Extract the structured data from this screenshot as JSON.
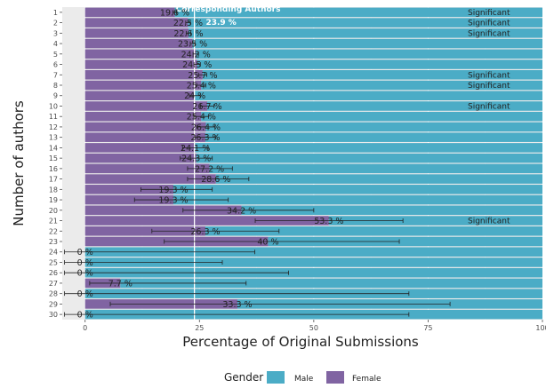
{
  "chart_data": {
    "type": "bar",
    "orientation": "horizontal",
    "stacked": true,
    "xlabel": "Percentage of Original Submissions",
    "ylabel": "Number of authors",
    "xlim": [
      -5,
      100
    ],
    "x_ticks": [
      0,
      25,
      50,
      75,
      100
    ],
    "grid": true,
    "categories": [
      "1",
      "2",
      "3",
      "4",
      "5",
      "6",
      "7",
      "8",
      "9",
      "10",
      "11",
      "12",
      "13",
      "14",
      "15",
      "16",
      "17",
      "18",
      "19",
      "20",
      "21",
      "22",
      "23",
      "24",
      "25",
      "26",
      "27",
      "28",
      "29",
      "30"
    ],
    "series": [
      {
        "name": "Female",
        "color": "#8064a2",
        "values": [
          19.6,
          22.5,
          22.6,
          23.5,
          24.2,
          24.5,
          25.7,
          25.4,
          24,
          26.7,
          25.4,
          26.4,
          26.3,
          24.1,
          24.3,
          27.2,
          28.6,
          19.3,
          19.3,
          34.2,
          53.3,
          26.3,
          40,
          0,
          0,
          0,
          7.7,
          0,
          33.3,
          0
        ]
      },
      {
        "name": "Male",
        "color": "#4bacc6",
        "values": [
          80.4,
          77.5,
          77.4,
          76.5,
          75.8,
          75.5,
          74.3,
          74.6,
          76,
          73.3,
          74.6,
          73.6,
          73.7,
          75.9,
          75.7,
          72.8,
          71.4,
          80.7,
          80.7,
          65.8,
          46.7,
          73.7,
          60,
          100,
          100,
          100,
          92.3,
          100,
          66.7,
          100
        ]
      }
    ],
    "female_labels": [
      "19.6 %",
      "22.5 %",
      "22.6 %",
      "23.5 %",
      "24.2 %",
      "24.5 %",
      "25.7 %",
      "25.4 %",
      "24 %",
      "26.7 %",
      "25.4 %",
      "26.4 %",
      "26.3 %",
      "24.1 %",
      "24.3 %",
      "27.2 %",
      "28.6 %",
      "19.3 %",
      "19.3 %",
      "34.2 %",
      "53.3 %",
      "26.3 %",
      "40 %",
      "0 %",
      "0 %",
      "0 %",
      "7.7 %",
      "0 %",
      "33.3 %",
      "0 %"
    ],
    "error_bars": [
      [
        19.2,
        20
      ],
      [
        22,
        23
      ],
      [
        22.1,
        23.1
      ],
      [
        23,
        24
      ],
      [
        23.6,
        24.8
      ],
      [
        23.8,
        25.2
      ],
      [
        24.8,
        26.6
      ],
      [
        24.4,
        26.4
      ],
      [
        22.8,
        25.2
      ],
      [
        25.2,
        28.2
      ],
      [
        23.8,
        27
      ],
      [
        24.4,
        28.4
      ],
      [
        24,
        28.6
      ],
      [
        21.3,
        26.9
      ],
      [
        20.8,
        27.8
      ],
      [
        22.4,
        32.2
      ],
      [
        22.4,
        35.8
      ],
      [
        12.2,
        27.8
      ],
      [
        10.8,
        31.3
      ],
      [
        21.4,
        50
      ],
      [
        37.2,
        69.5
      ],
      [
        14.6,
        42.4
      ],
      [
        17.3,
        68.7
      ],
      [
        -4.5,
        37.1
      ],
      [
        -4.5,
        30
      ],
      [
        -4.5,
        44.5
      ],
      [
        1,
        35.2
      ],
      [
        -4.5,
        70.8
      ],
      [
        5.5,
        79.8
      ],
      [
        -4.5,
        70.8
      ]
    ],
    "significant": [
      "1",
      "2",
      "3",
      "7",
      "8",
      "10",
      "21"
    ],
    "significant_label": "Significant",
    "reference_line": {
      "value": 23.9,
      "label": "23.9 %",
      "caption": "Corresponding Authors"
    },
    "legend": {
      "title": "Gender",
      "position": "bottom",
      "entries": [
        "Male",
        "Female"
      ]
    }
  }
}
